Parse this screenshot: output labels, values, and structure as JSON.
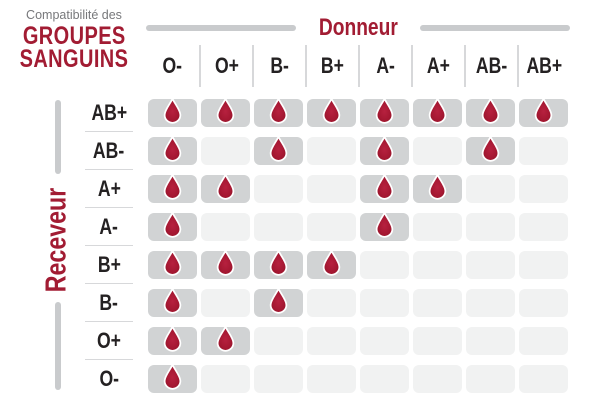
{
  "title": {
    "eyebrow": "Compatibilité des",
    "line1": "GROUPES",
    "line2": "SANGUINS"
  },
  "donor_axis_label": "Donneur",
  "receiver_axis_label": "Receveur",
  "icons": {
    "compatible_marker": "blood-drop-icon"
  },
  "colors": {
    "accent_red": "#a21c33",
    "drop_center": "#b7213f",
    "drop_edge": "#8e1126",
    "drop_outline": "#ffffff",
    "header_text": "#242122",
    "muted_text": "#77787b",
    "cell_active": "#d1d3d4",
    "cell_inactive": "#f1f2f2",
    "axis_line": "#c9cbcd"
  },
  "chart_data": {
    "type": "heatmap",
    "title": "Compatibilité des GROUPES SANGUINS",
    "xlabel": "Donneur",
    "ylabel": "Receveur",
    "columns": [
      "O-",
      "O+",
      "B-",
      "B+",
      "A-",
      "A+",
      "AB-",
      "AB+"
    ],
    "rows": [
      "AB+",
      "AB-",
      "A+",
      "A-",
      "B+",
      "B-",
      "O+",
      "O-"
    ],
    "matrix": [
      [
        1,
        1,
        1,
        1,
        1,
        1,
        1,
        1
      ],
      [
        1,
        0,
        1,
        0,
        1,
        0,
        1,
        0
      ],
      [
        1,
        1,
        0,
        0,
        1,
        1,
        0,
        0
      ],
      [
        1,
        0,
        0,
        0,
        1,
        0,
        0,
        0
      ],
      [
        1,
        1,
        1,
        1,
        0,
        0,
        0,
        0
      ],
      [
        1,
        0,
        1,
        0,
        0,
        0,
        0,
        0
      ],
      [
        1,
        1,
        0,
        0,
        0,
        0,
        0,
        0
      ],
      [
        1,
        0,
        0,
        0,
        0,
        0,
        0,
        0
      ]
    ],
    "legend_position": "none",
    "grid": "off",
    "cell_marker": "blood drop shown when donor is compatible with receiver"
  }
}
